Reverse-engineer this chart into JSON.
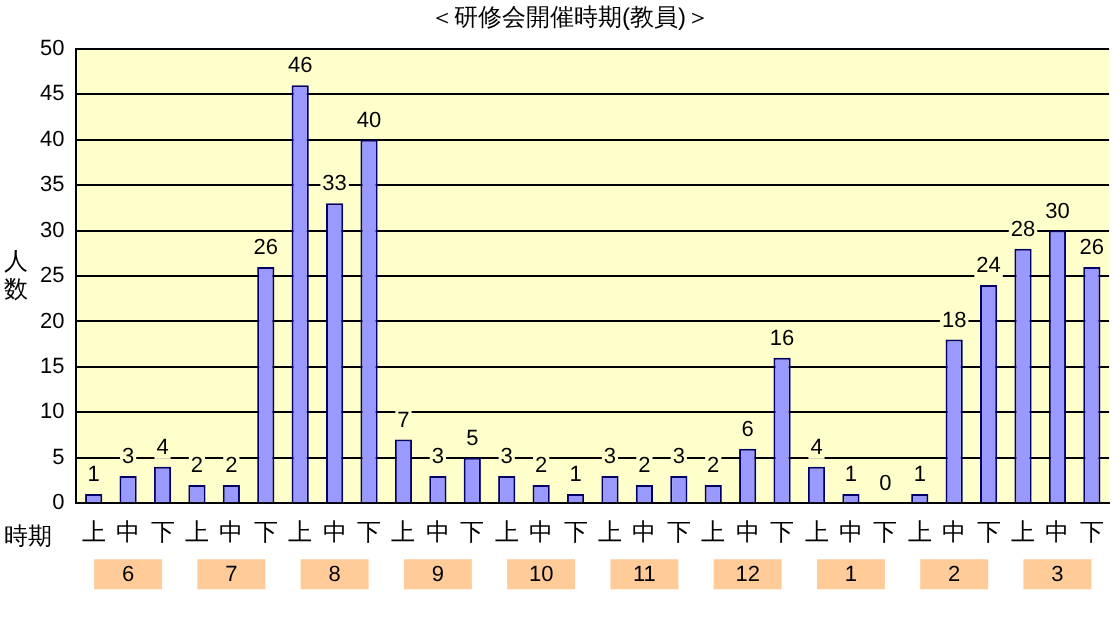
{
  "chart_data": {
    "type": "bar",
    "title": "＜研修会開催時期(教員)＞",
    "xlabel": "時期",
    "ylabel": "人数",
    "categories": [
      "上",
      "中",
      "下",
      "上",
      "中",
      "下",
      "上",
      "中",
      "下",
      "上",
      "中",
      "下",
      "上",
      "中",
      "下",
      "上",
      "中",
      "下",
      "上",
      "中",
      "下",
      "上",
      "中",
      "下",
      "上",
      "中",
      "下",
      "上",
      "中",
      "下"
    ],
    "values": [
      1,
      3,
      4,
      2,
      2,
      26,
      46,
      33,
      40,
      7,
      3,
      5,
      3,
      2,
      1,
      3,
      2,
      3,
      2,
      6,
      16,
      4,
      1,
      0,
      1,
      18,
      24,
      28,
      30,
      26
    ],
    "color": "#9999ff",
    "annotations": [
      "6",
      "7",
      "8",
      "9",
      "10",
      "11",
      "12",
      "1",
      "2",
      "3"
    ],
    "ylim": [
      0,
      50
    ],
    "yticks": [
      0,
      5,
      10,
      15,
      20,
      25,
      30,
      35,
      40,
      45,
      50
    ],
    "grid": "y",
    "data_labels": true,
    "legend": false
  }
}
